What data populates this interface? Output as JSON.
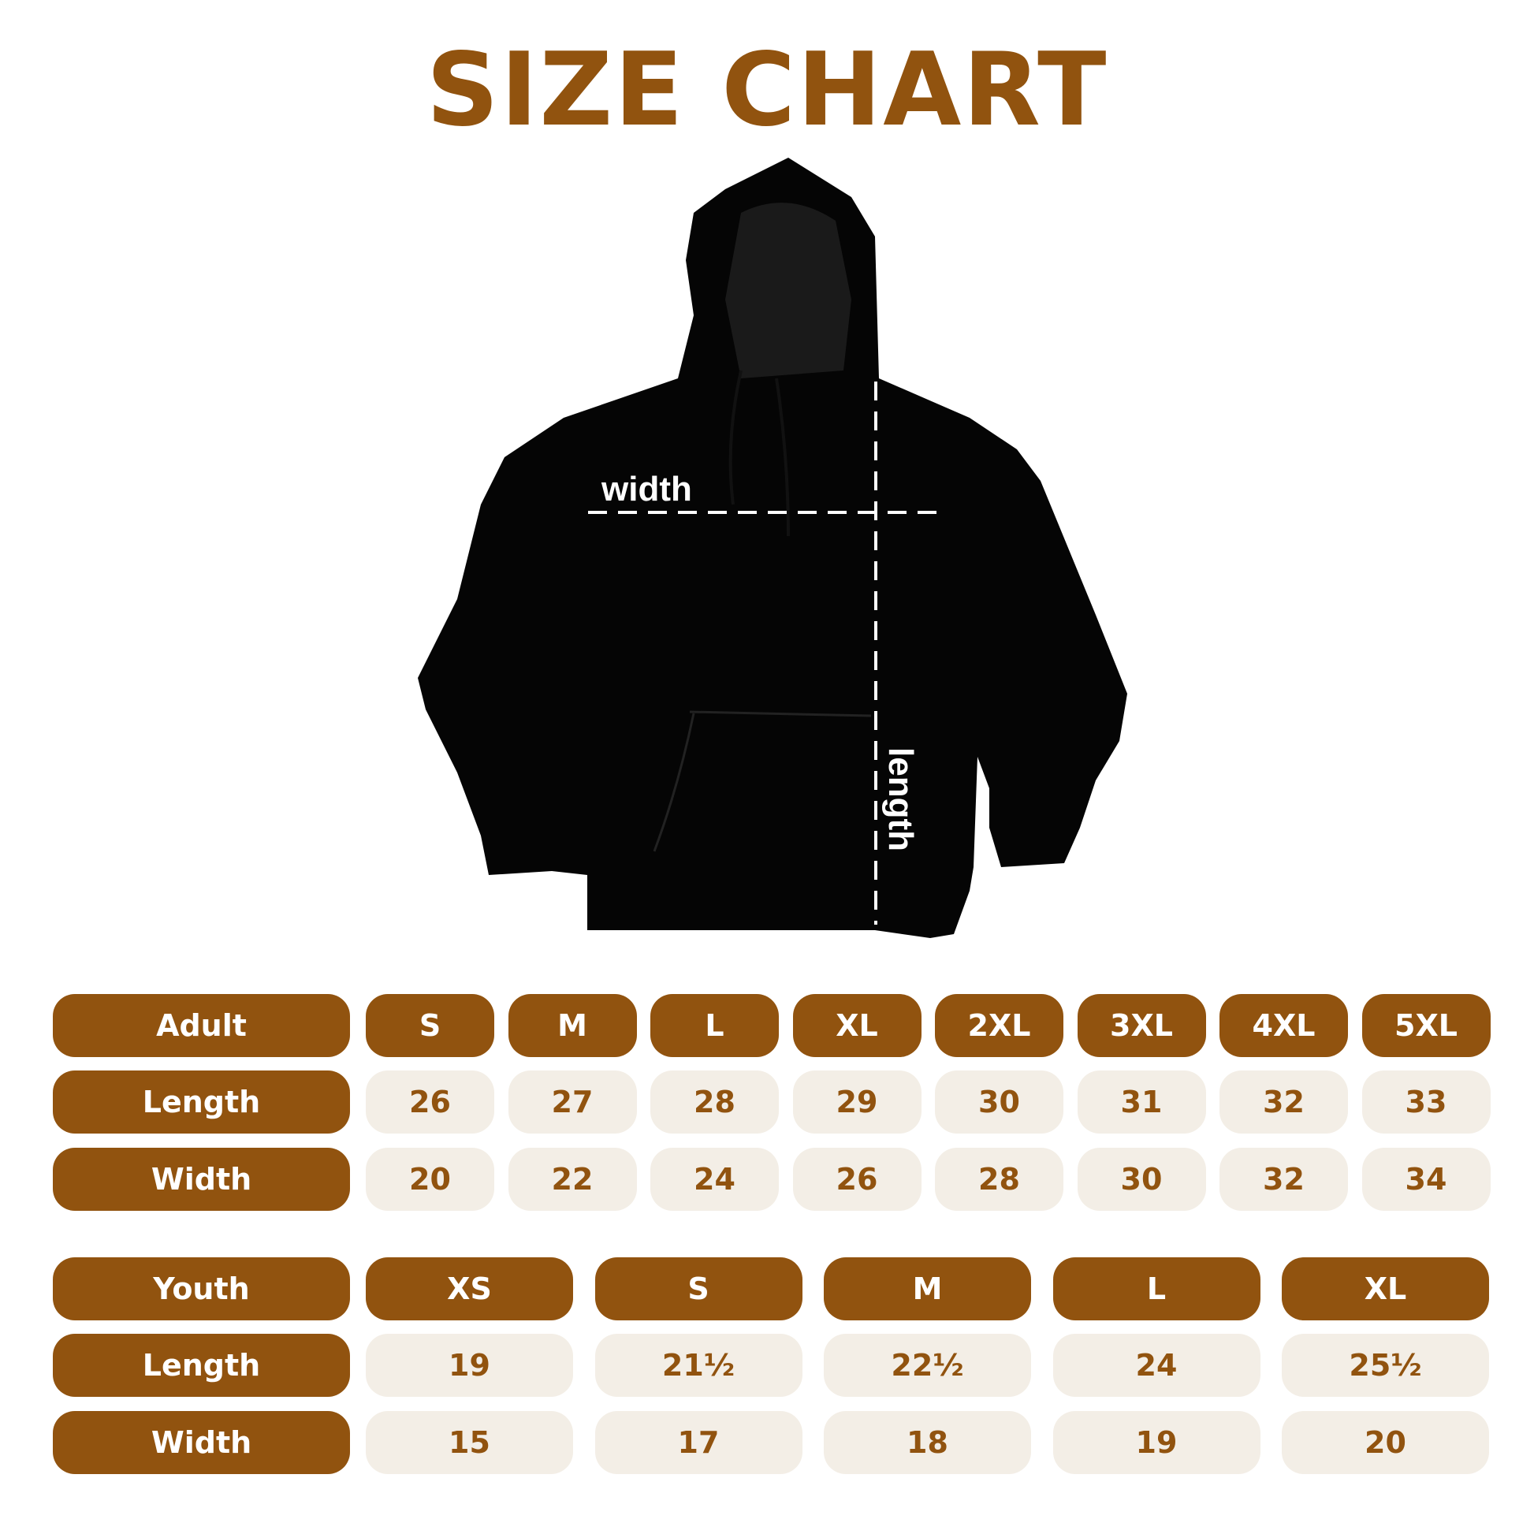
{
  "title": "SIZE CHART",
  "colors": {
    "brand": "#91530f",
    "cell_bg": "#f3eee6"
  },
  "diagram": {
    "width_label": "width",
    "length_label": "length"
  },
  "adult": {
    "header": "Adult",
    "sizes": [
      "S",
      "M",
      "L",
      "XL",
      "2XL",
      "3XL",
      "4XL",
      "5XL"
    ],
    "rows": [
      {
        "label": "Length",
        "values": [
          "26",
          "27",
          "28",
          "29",
          "30",
          "31",
          "32",
          "33"
        ]
      },
      {
        "label": "Width",
        "values": [
          "20",
          "22",
          "24",
          "26",
          "28",
          "30",
          "32",
          "34"
        ]
      }
    ]
  },
  "youth": {
    "header": "Youth",
    "sizes": [
      "XS",
      "S",
      "M",
      "L",
      "XL"
    ],
    "rows": [
      {
        "label": "Length",
        "values": [
          "19",
          "21½",
          "22½",
          "24",
          "25½"
        ]
      },
      {
        "label": "Width",
        "values": [
          "15",
          "17",
          "18",
          "19",
          "20"
        ]
      }
    ]
  }
}
